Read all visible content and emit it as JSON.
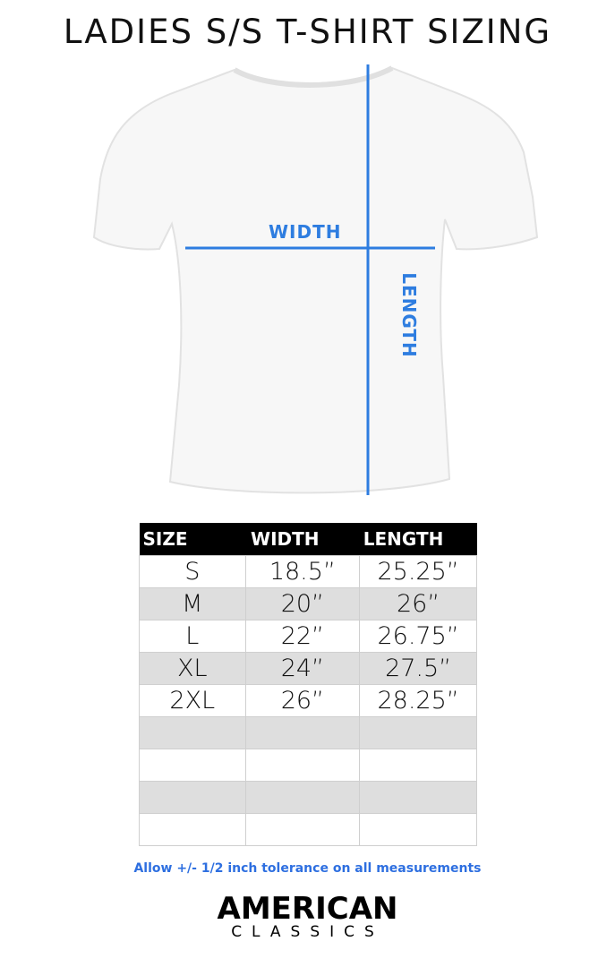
{
  "title": "LADIES S/S T-SHIRT SIZING",
  "diagram": {
    "width_label": "WIDTH",
    "length_label": "LENGTH",
    "line_color": "#2e7de0"
  },
  "table": {
    "headers": [
      "SIZE",
      "WIDTH",
      "LENGTH"
    ],
    "rows": [
      [
        "S",
        "18.5”",
        "25.25”"
      ],
      [
        "M",
        "20”",
        "26”"
      ],
      [
        "L",
        "22”",
        "26.75”"
      ],
      [
        "XL",
        "24”",
        "27.5”"
      ],
      [
        "2XL",
        "26”",
        "28.25”"
      ]
    ]
  },
  "note": "Allow +/- 1/2 inch tolerance on all measurements",
  "logo": {
    "line1": "AMERICAN",
    "line2": "CLASSICS"
  }
}
